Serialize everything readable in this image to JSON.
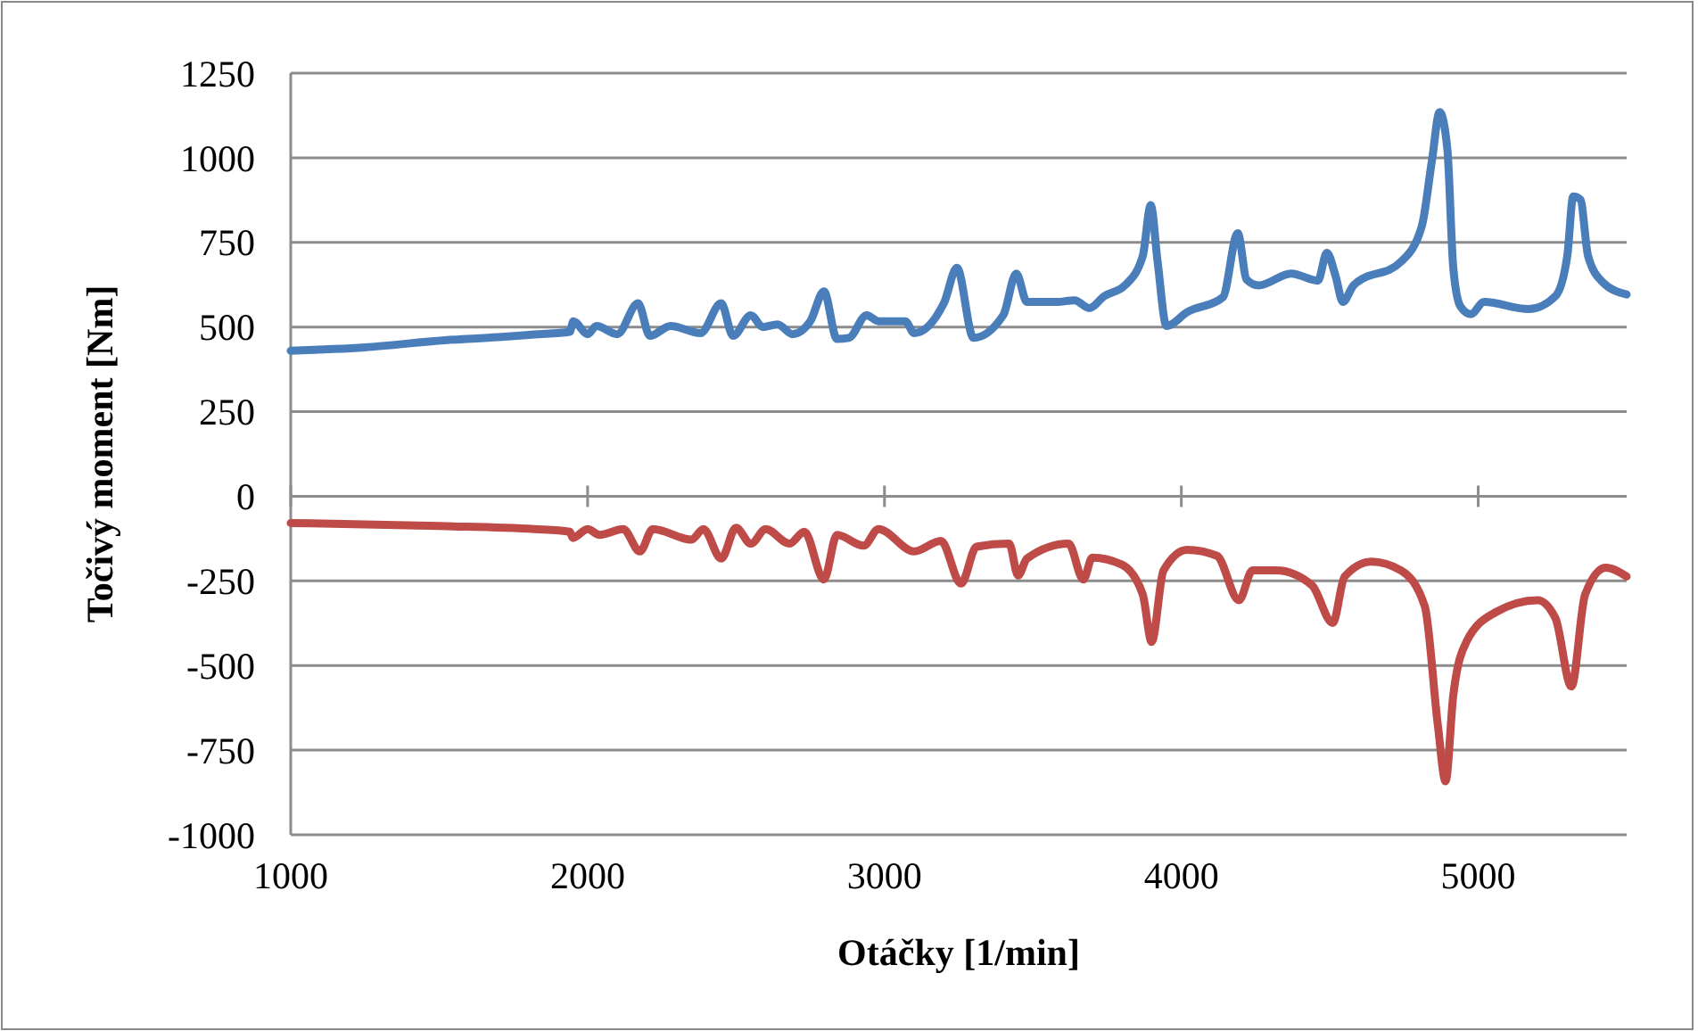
{
  "chart_data": {
    "type": "line",
    "xlabel": "Otáčky [1/min]",
    "ylabel": "Točivý moment [Nm]",
    "xlim": [
      1000,
      5500
    ],
    "xticks": [
      1000,
      2000,
      3000,
      4000,
      5000
    ],
    "ylim": [
      -1000,
      1250
    ],
    "yticks": [
      -1000,
      -750,
      -500,
      -250,
      0,
      250,
      500,
      750,
      1000,
      1250
    ],
    "grid": "y",
    "line_style": "solid",
    "series": [
      {
        "color": "#4a7ebb",
        "x": [
          1000,
          1250,
          1520,
          1700,
          1820,
          1940,
          1952,
          2000,
          2030,
          2100,
          2170,
          2210,
          2280,
          2380,
          2450,
          2490,
          2550,
          2590,
          2640,
          2690,
          2750,
          2796,
          2840,
          2880,
          2940,
          2980,
          3070,
          3100,
          3200,
          3244,
          3300,
          3400,
          3444,
          3480,
          3580,
          3640,
          3690,
          3740,
          3810,
          3870,
          3897,
          3920,
          3950,
          4020,
          4140,
          4190,
          4220,
          4260,
          4370,
          4460,
          4490,
          4520,
          4544,
          4580,
          4740,
          4810,
          4844,
          4870,
          4896,
          4916,
          4940,
          4975,
          5020,
          5170,
          5260,
          5300,
          5320,
          5344,
          5370,
          5420,
          5500
        ],
        "values": [
          430,
          440,
          461,
          470,
          478,
          486,
          517,
          479,
          503,
          479,
          570,
          474,
          503,
          482,
          570,
          474,
          535,
          500,
          508,
          479,
          517,
          605,
          465,
          468,
          535,
          517,
          517,
          482,
          570,
          675,
          468,
          535,
          658,
          574,
          574,
          579,
          556,
          591,
          623,
          710,
          860,
          693,
          503,
          544,
          588,
          777,
          640,
          623,
          658,
          637,
          719,
          649,
          574,
          623,
          693,
          798,
          991,
          1135,
          1026,
          675,
          561,
          538,
          574,
          553,
          591,
          710,
          886,
          877,
          710,
          632,
          596
        ]
      },
      {
        "color": "#be4b48",
        "x": [
          1000,
          1500,
          1820,
          1940,
          1950,
          2000,
          2040,
          2120,
          2176,
          2220,
          2350,
          2390,
          2450,
          2500,
          2550,
          2600,
          2680,
          2730,
          2796,
          2840,
          2930,
          2980,
          3100,
          3190,
          3258,
          3310,
          3420,
          3450,
          3480,
          3620,
          3670,
          3700,
          3800,
          3870,
          3900,
          3940,
          4020,
          4120,
          4194,
          4240,
          4320,
          4440,
          4510,
          4550,
          4640,
          4740,
          4820,
          4864,
          4890,
          4916,
          4960,
          5060,
          5200,
          5260,
          5314,
          5360,
          5430,
          5500
        ],
        "values": [
          -79,
          -88,
          -97,
          -105,
          -123,
          -97,
          -114,
          -97,
          -163,
          -97,
          -128,
          -97,
          -184,
          -93,
          -140,
          -97,
          -140,
          -105,
          -246,
          -114,
          -146,
          -97,
          -163,
          -132,
          -258,
          -149,
          -140,
          -234,
          -184,
          -140,
          -246,
          -181,
          -202,
          -290,
          -430,
          -219,
          -158,
          -176,
          -307,
          -219,
          -219,
          -263,
          -374,
          -237,
          -193,
          -219,
          -325,
          -676,
          -842,
          -588,
          -430,
          -342,
          -307,
          -360,
          -562,
          -290,
          -211,
          -237
        ]
      }
    ]
  }
}
